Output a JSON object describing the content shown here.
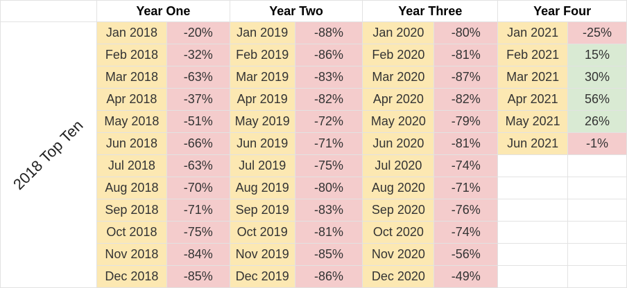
{
  "sheet": {
    "side_label": "2018 Top Ten",
    "colors": {
      "date_bg": "#fce8b2",
      "negative_bg": "#f4cccc",
      "positive_bg": "#d9ead3",
      "blank_bg": "#ffffff",
      "grid_line": "#e2e2e2"
    },
    "years": [
      {
        "label": "Year One",
        "rows": [
          {
            "month": "Jan 2018",
            "change": "-20%"
          },
          {
            "month": "Feb 2018",
            "change": "-32%"
          },
          {
            "month": "Mar 2018",
            "change": "-63%"
          },
          {
            "month": "Apr 2018",
            "change": "-37%"
          },
          {
            "month": "May 2018",
            "change": "-51%"
          },
          {
            "month": "Jun 2018",
            "change": "-66%"
          },
          {
            "month": "Jul 2018",
            "change": "-63%"
          },
          {
            "month": "Aug 2018",
            "change": "-70%"
          },
          {
            "month": "Sep 2018",
            "change": "-71%"
          },
          {
            "month": "Oct 2018",
            "change": "-75%"
          },
          {
            "month": "Nov 2018",
            "change": "-84%"
          },
          {
            "month": "Dec 2018",
            "change": "-85%"
          }
        ]
      },
      {
        "label": "Year Two",
        "rows": [
          {
            "month": "Jan 2019",
            "change": "-88%"
          },
          {
            "month": "Feb 2019",
            "change": "-86%"
          },
          {
            "month": "Mar 2019",
            "change": "-83%"
          },
          {
            "month": "Apr 2019",
            "change": "-82%"
          },
          {
            "month": "May 2019",
            "change": "-72%"
          },
          {
            "month": "Jun 2019",
            "change": "-71%"
          },
          {
            "month": "Jul 2019",
            "change": "-75%"
          },
          {
            "month": "Aug 2019",
            "change": "-80%"
          },
          {
            "month": "Sep 2019",
            "change": "-83%"
          },
          {
            "month": "Oct 2019",
            "change": "-81%"
          },
          {
            "month": "Nov 2019",
            "change": "-85%"
          },
          {
            "month": "Dec 2019",
            "change": "-86%"
          }
        ]
      },
      {
        "label": "Year Three",
        "rows": [
          {
            "month": "Jan 2020",
            "change": "-80%"
          },
          {
            "month": "Feb 2020",
            "change": "-81%"
          },
          {
            "month": "Mar 2020",
            "change": "-87%"
          },
          {
            "month": "Apr 2020",
            "change": "-82%"
          },
          {
            "month": "May 2020",
            "change": "-79%"
          },
          {
            "month": "Jun 2020",
            "change": "-81%"
          },
          {
            "month": "Jul 2020",
            "change": "-74%"
          },
          {
            "month": "Aug 2020",
            "change": "-71%"
          },
          {
            "month": "Sep 2020",
            "change": "-76%"
          },
          {
            "month": "Oct 2020",
            "change": "-74%"
          },
          {
            "month": "Nov 2020",
            "change": "-56%"
          },
          {
            "month": "Dec 2020",
            "change": "-49%"
          }
        ]
      },
      {
        "label": "Year Four",
        "rows": [
          {
            "month": "Jan 2021",
            "change": "-25%"
          },
          {
            "month": "Feb 2021",
            "change": "15%"
          },
          {
            "month": "Mar 2021",
            "change": "30%"
          },
          {
            "month": "Apr 2021",
            "change": "56%"
          },
          {
            "month": "May 2021",
            "change": "26%"
          },
          {
            "month": "Jun 2021",
            "change": "-1%"
          }
        ]
      }
    ]
  }
}
